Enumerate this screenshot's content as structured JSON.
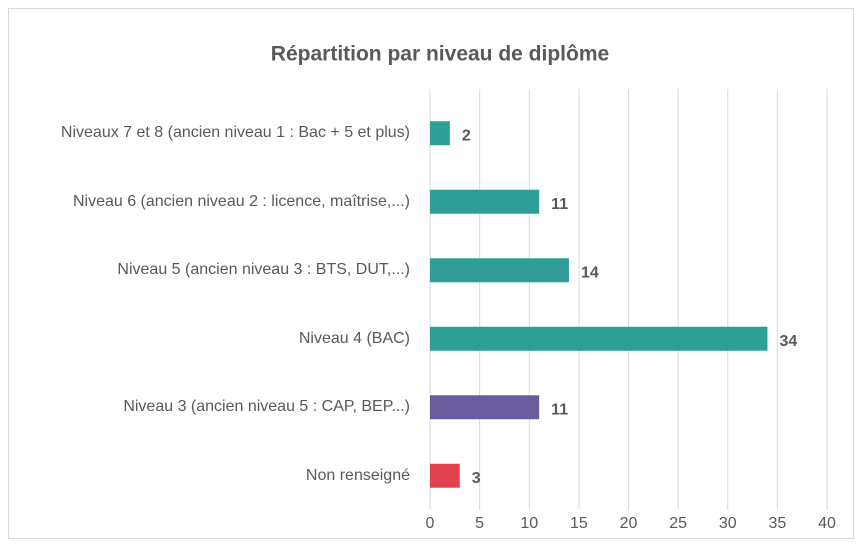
{
  "chart_data": {
    "type": "barh",
    "title": "Répartition par niveau de diplôme",
    "categories": [
      "Niveaux 7 et 8 (ancien niveau 1 : Bac + 5 et plus)",
      "Niveau 6 (ancien niveau 2 : licence, maîtrise,...)",
      "Niveau 5 (ancien niveau 3 : BTS, DUT,...)",
      "Niveau 4 (BAC)",
      "Niveau 3 (ancien niveau 5 : CAP, BEP...)",
      "Non renseigné"
    ],
    "values": [
      2,
      11,
      14,
      34,
      11,
      3
    ],
    "colors": [
      "#2e9e96",
      "#2e9e96",
      "#2e9e96",
      "#2e9e96",
      "#6a5b9c",
      "#e0424f"
    ],
    "xlim": [
      0,
      40
    ],
    "xticks": [
      0,
      5,
      10,
      15,
      20,
      25,
      30,
      35,
      40
    ],
    "grid": true
  }
}
